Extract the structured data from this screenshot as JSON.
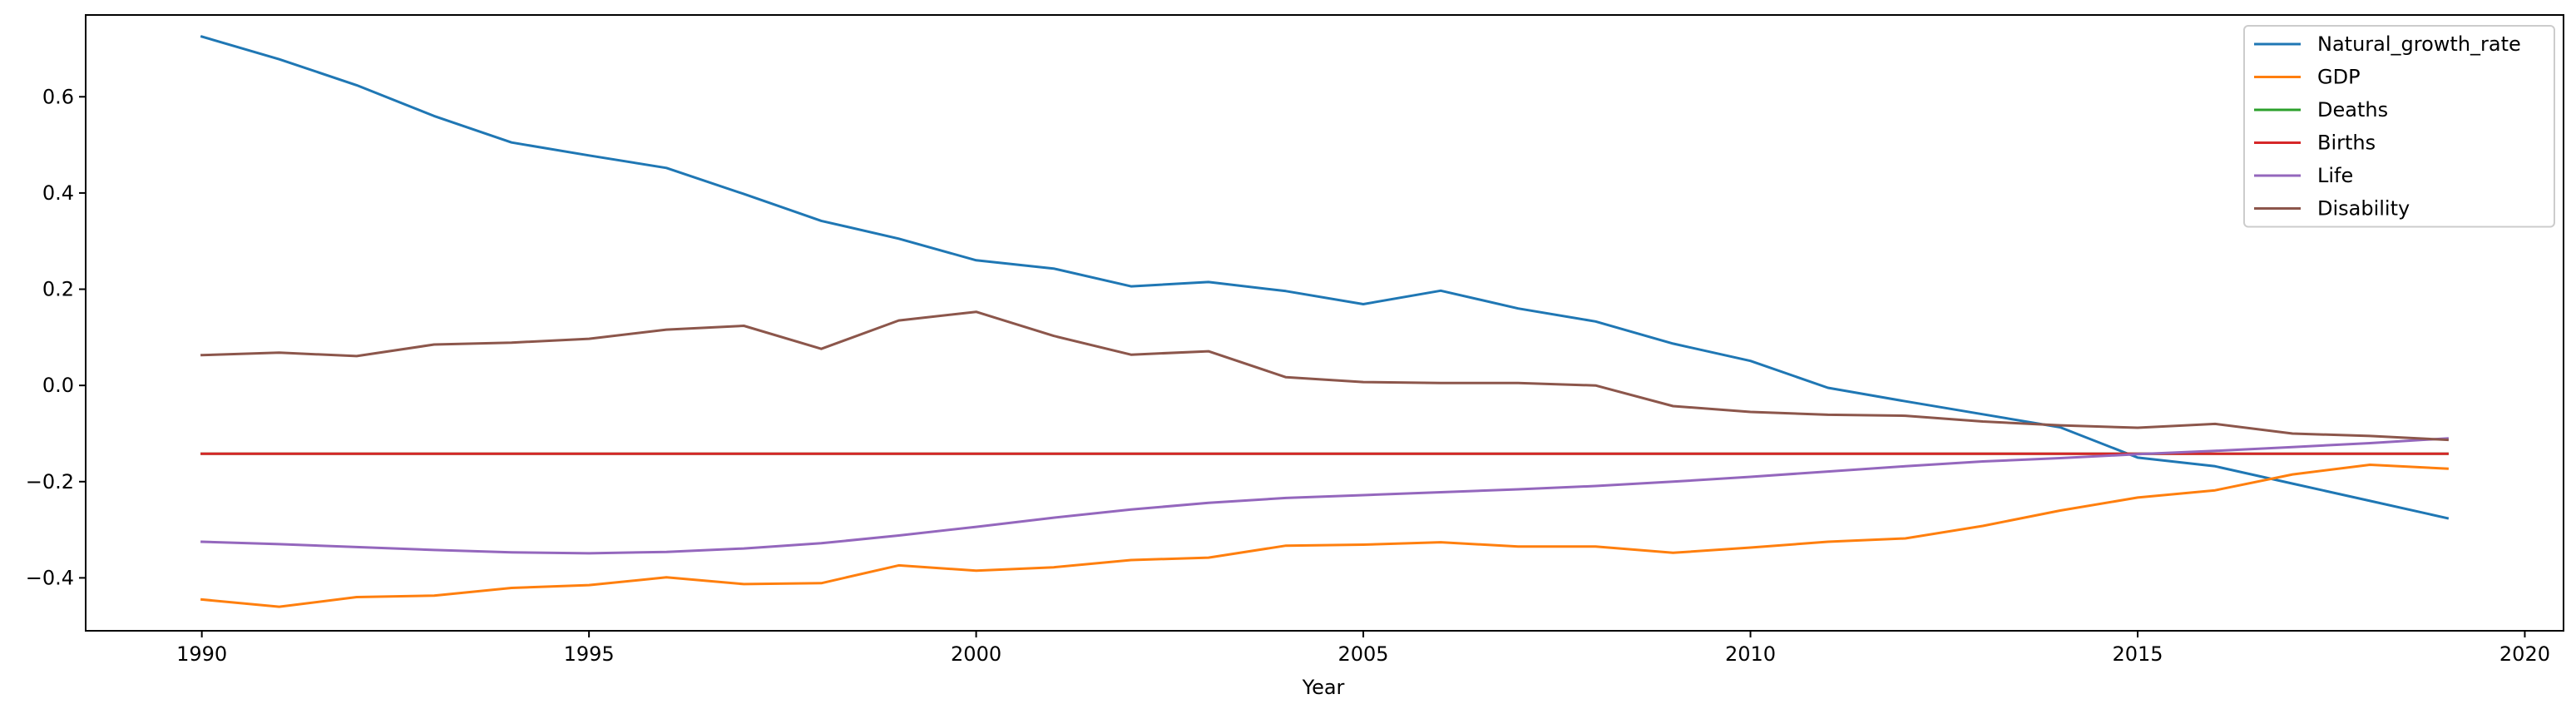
{
  "chart_data": {
    "type": "line",
    "xlabel": "Year",
    "ylabel": "",
    "xlim": [
      1988.5,
      2020.5
    ],
    "ylim": [
      -0.51,
      0.77
    ],
    "xticks": [
      1990,
      1995,
      2000,
      2005,
      2010,
      2015,
      2020
    ],
    "yticks": [
      -0.4,
      -0.2,
      0.0,
      0.2,
      0.4,
      0.6
    ],
    "ytick_labels": [
      "−0.4",
      "−0.2",
      "0.0",
      "0.2",
      "0.4",
      "0.6"
    ],
    "grid": false,
    "legend_position": "top-right",
    "x": [
      1990,
      1991,
      1992,
      1993,
      1994,
      1995,
      1996,
      1997,
      1998,
      1999,
      2000,
      2001,
      2002,
      2003,
      2004,
      2005,
      2006,
      2007,
      2008,
      2009,
      2010,
      2011,
      2012,
      2013,
      2014,
      2015,
      2016,
      2017,
      2018,
      2019
    ],
    "series": [
      {
        "name": "Natural_growth_rate",
        "color": "#1f77b4",
        "values": [
          0.725,
          0.678,
          0.624,
          0.56,
          0.505,
          0.478,
          0.452,
          0.398,
          0.342,
          0.305,
          0.26,
          0.243,
          0.206,
          0.215,
          0.196,
          0.169,
          0.197,
          0.16,
          0.133,
          0.087,
          0.051,
          -0.005,
          -0.033,
          -0.06,
          -0.087,
          -0.15,
          -0.168,
          -0.204,
          -0.24,
          -0.276
        ]
      },
      {
        "name": "GDP",
        "color": "#ff7f0e",
        "values": [
          -0.445,
          -0.46,
          -0.44,
          -0.437,
          -0.421,
          -0.415,
          -0.399,
          -0.413,
          -0.411,
          -0.374,
          -0.385,
          -0.378,
          -0.363,
          -0.358,
          -0.333,
          -0.331,
          -0.326,
          -0.335,
          -0.335,
          -0.348,
          -0.337,
          -0.325,
          -0.318,
          -0.292,
          -0.26,
          -0.233,
          -0.218,
          -0.185,
          -0.165,
          -0.173
        ]
      },
      {
        "name": "Deaths",
        "color": "#2ca02c",
        "values": [
          -0.142,
          -0.142,
          -0.142,
          -0.142,
          -0.142,
          -0.142,
          -0.142,
          -0.142,
          -0.142,
          -0.142,
          -0.142,
          -0.142,
          -0.142,
          -0.142,
          -0.142,
          -0.142,
          -0.142,
          -0.142,
          -0.142,
          -0.142,
          -0.142,
          -0.142,
          -0.142,
          -0.142,
          -0.142,
          -0.142,
          -0.142,
          -0.142,
          -0.142,
          -0.142
        ]
      },
      {
        "name": "Births",
        "color": "#d62728",
        "values": [
          -0.142,
          -0.142,
          -0.142,
          -0.142,
          -0.142,
          -0.142,
          -0.142,
          -0.142,
          -0.142,
          -0.142,
          -0.142,
          -0.142,
          -0.142,
          -0.142,
          -0.142,
          -0.142,
          -0.142,
          -0.142,
          -0.142,
          -0.142,
          -0.142,
          -0.142,
          -0.142,
          -0.142,
          -0.142,
          -0.142,
          -0.142,
          -0.142,
          -0.142,
          -0.142
        ]
      },
      {
        "name": "Life",
        "color": "#9467bd",
        "values": [
          -0.325,
          -0.33,
          -0.336,
          -0.342,
          -0.347,
          -0.349,
          -0.346,
          -0.339,
          -0.328,
          -0.312,
          -0.294,
          -0.275,
          -0.258,
          -0.244,
          -0.234,
          -0.228,
          -0.222,
          -0.216,
          -0.209,
          -0.2,
          -0.19,
          -0.179,
          -0.168,
          -0.158,
          -0.151,
          -0.143,
          -0.136,
          -0.128,
          -0.12,
          -0.11
        ]
      },
      {
        "name": "Disability",
        "color": "#8c564b",
        "values": [
          0.063,
          0.068,
          0.061,
          0.085,
          0.089,
          0.097,
          0.116,
          0.124,
          0.076,
          0.135,
          0.153,
          0.103,
          0.064,
          0.071,
          0.017,
          0.007,
          0.005,
          0.005,
          0.0,
          -0.043,
          -0.055,
          -0.061,
          -0.063,
          -0.075,
          -0.083,
          -0.088,
          -0.08,
          -0.1,
          -0.105,
          -0.113
        ]
      }
    ]
  }
}
